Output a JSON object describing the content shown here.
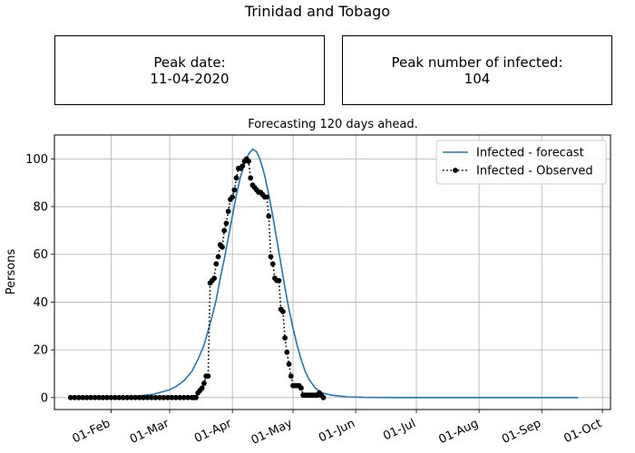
{
  "figure_title": "Trinidad and Tobago",
  "peak_date_box": {
    "label": "Peak date:",
    "value": "11-04-2020"
  },
  "peak_infected_box": {
    "label": "Peak number of infected:",
    "value": "104"
  },
  "chart_data": {
    "type": "line",
    "title": "Forecasting 120 days ahead.",
    "xlabel": "",
    "ylabel": "Persons",
    "xlim": [
      "2020-01-04",
      "2020-10-05"
    ],
    "ylim": [
      -5,
      110
    ],
    "x_ticks": [
      "2020-02-01",
      "2020-03-01",
      "2020-04-01",
      "2020-05-01",
      "2020-06-01",
      "2020-07-01",
      "2020-08-01",
      "2020-09-01",
      "2020-10-01"
    ],
    "x_tick_labels": [
      "01-Feb",
      "01-Mar",
      "01-Apr",
      "01-May",
      "01-Jun",
      "01-Jul",
      "01-Aug",
      "01-Sep",
      "01-Oct"
    ],
    "y_ticks": [
      0,
      20,
      40,
      60,
      80,
      100
    ],
    "grid": true,
    "legend_position": "top-right",
    "series": [
      {
        "name": "Infected - forecast",
        "style": "solid",
        "color": "#1f77b4",
        "x": [
          "2020-01-12",
          "2020-01-22",
          "2020-02-01",
          "2020-02-08",
          "2020-02-15",
          "2020-02-22",
          "2020-02-29",
          "2020-03-04",
          "2020-03-08",
          "2020-03-12",
          "2020-03-15",
          "2020-03-18",
          "2020-03-20",
          "2020-03-22",
          "2020-03-24",
          "2020-03-26",
          "2020-03-28",
          "2020-03-30",
          "2020-04-01",
          "2020-04-03",
          "2020-04-05",
          "2020-04-07",
          "2020-04-09",
          "2020-04-11",
          "2020-04-13",
          "2020-04-15",
          "2020-04-17",
          "2020-04-19",
          "2020-04-21",
          "2020-04-23",
          "2020-04-25",
          "2020-04-27",
          "2020-04-29",
          "2020-05-01",
          "2020-05-03",
          "2020-05-05",
          "2020-05-07",
          "2020-05-09",
          "2020-05-12",
          "2020-05-15",
          "2020-05-20",
          "2020-05-27",
          "2020-06-05",
          "2020-06-20",
          "2020-07-10",
          "2020-08-10",
          "2020-09-19"
        ],
        "y": [
          0,
          0,
          0.1,
          0.3,
          0.7,
          1.4,
          3,
          4.5,
          7,
          11,
          16,
          22,
          28,
          34,
          41,
          50,
          58,
          67,
          76,
          85,
          92.5,
          98,
          102,
          104,
          103,
          99,
          93,
          85,
          76,
          66,
          56,
          46,
          37,
          29,
          22,
          16,
          11,
          7.5,
          4,
          2,
          1,
          0.4,
          0.1,
          0,
          0,
          0,
          0
        ]
      },
      {
        "name": "Infected - Observed",
        "style": "dotted",
        "marker": "o",
        "color": "#000000",
        "x": [
          "2020-01-12",
          "2020-01-14",
          "2020-01-16",
          "2020-01-18",
          "2020-01-20",
          "2020-01-22",
          "2020-01-24",
          "2020-01-26",
          "2020-01-28",
          "2020-01-30",
          "2020-02-01",
          "2020-02-03",
          "2020-02-05",
          "2020-02-07",
          "2020-02-09",
          "2020-02-11",
          "2020-02-13",
          "2020-02-15",
          "2020-02-17",
          "2020-02-19",
          "2020-02-21",
          "2020-02-23",
          "2020-02-25",
          "2020-02-27",
          "2020-02-29",
          "2020-03-02",
          "2020-03-04",
          "2020-03-06",
          "2020-03-08",
          "2020-03-10",
          "2020-03-12",
          "2020-03-13",
          "2020-03-14",
          "2020-03-15",
          "2020-03-16",
          "2020-03-17",
          "2020-03-18",
          "2020-03-19",
          "2020-03-20",
          "2020-03-21",
          "2020-03-22",
          "2020-03-23",
          "2020-03-24",
          "2020-03-25",
          "2020-03-26",
          "2020-03-27",
          "2020-03-28",
          "2020-03-29",
          "2020-03-30",
          "2020-03-31",
          "2020-04-01",
          "2020-04-02",
          "2020-04-03",
          "2020-04-04",
          "2020-04-05",
          "2020-04-06",
          "2020-04-07",
          "2020-04-08",
          "2020-04-09",
          "2020-04-10",
          "2020-04-11",
          "2020-04-12",
          "2020-04-13",
          "2020-04-14",
          "2020-04-15",
          "2020-04-16",
          "2020-04-17",
          "2020-04-18",
          "2020-04-19",
          "2020-04-20",
          "2020-04-21",
          "2020-04-22",
          "2020-04-23",
          "2020-04-24",
          "2020-04-25",
          "2020-04-26",
          "2020-04-27",
          "2020-04-28",
          "2020-04-29",
          "2020-04-30",
          "2020-05-01",
          "2020-05-02",
          "2020-05-03",
          "2020-05-04",
          "2020-05-05",
          "2020-05-06",
          "2020-05-07",
          "2020-05-08",
          "2020-05-09",
          "2020-05-10",
          "2020-05-11",
          "2020-05-12",
          "2020-05-13",
          "2020-05-14",
          "2020-05-15",
          "2020-05-16"
        ],
        "y": [
          0,
          0,
          0,
          0,
          0,
          0,
          0,
          0,
          0,
          0,
          0,
          0,
          0,
          0,
          0,
          0,
          0,
          0,
          0,
          0,
          0,
          0,
          0,
          0,
          0,
          0,
          0,
          0,
          0,
          0,
          0,
          0,
          0,
          2,
          3,
          4,
          6,
          9,
          9,
          48,
          49,
          50,
          56,
          59,
          64,
          63,
          70,
          73,
          78,
          83,
          84,
          87,
          92,
          96,
          96,
          97,
          99,
          100,
          99,
          92,
          89,
          88,
          87,
          86,
          86,
          85,
          84,
          84,
          76,
          59,
          56,
          50,
          49,
          49,
          37,
          36,
          25,
          19,
          14,
          9,
          5,
          5,
          5,
          5,
          4,
          1,
          1,
          1,
          1,
          1,
          1,
          1,
          1,
          2,
          1,
          0
        ]
      }
    ]
  }
}
